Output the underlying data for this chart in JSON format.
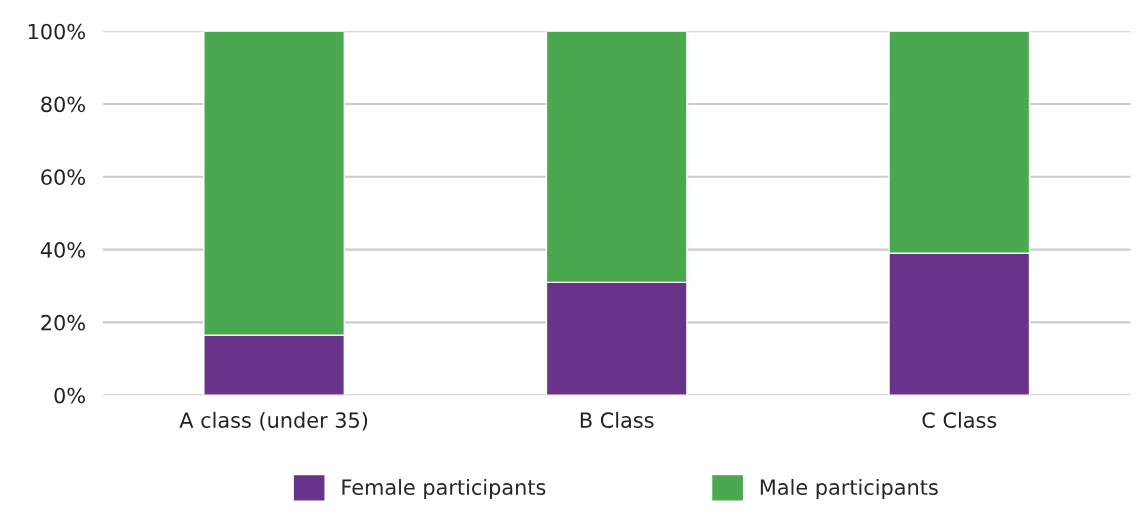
{
  "chart_data": {
    "type": "bar",
    "stacked": true,
    "categories": [
      "A class (under 35)",
      "B Class",
      "C Class"
    ],
    "series": [
      {
        "name": "Female participants",
        "color": "#67348a",
        "values": [
          16.5,
          31,
          39
        ]
      },
      {
        "name": "Male participants",
        "color": "#4aa84f",
        "values": [
          83.5,
          69,
          61
        ]
      }
    ],
    "ylim": [
      0,
      100
    ],
    "yticks": [
      {
        "value": 0,
        "label": "0%"
      },
      {
        "value": 20,
        "label": "20%"
      },
      {
        "value": 40,
        "label": "40%"
      },
      {
        "value": 60,
        "label": "60%"
      },
      {
        "value": 80,
        "label": "80%"
      },
      {
        "value": 100,
        "label": "100%"
      }
    ],
    "grid": "y",
    "legend": "bottom"
  }
}
